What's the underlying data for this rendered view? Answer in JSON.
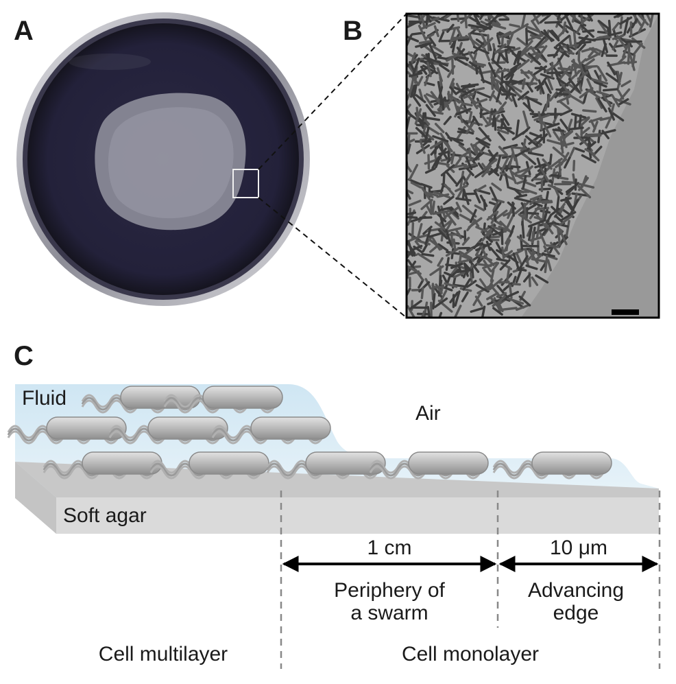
{
  "panels": {
    "a": {
      "label": "A"
    },
    "b": {
      "label": "B"
    },
    "c": {
      "label": "C"
    }
  },
  "diagram": {
    "fluid": "Fluid",
    "air": "Air",
    "soft_agar": "Soft agar",
    "scale_periphery": "1 cm",
    "scale_edge": "10 μm",
    "periphery_line1": "Periphery of",
    "periphery_line2": "a swarm",
    "edge_line1": "Advancing",
    "edge_line2": "edge",
    "multilayer": "Cell multilayer",
    "monolayer": "Cell monolayer"
  },
  "colors": {
    "dish_rim": "#c9c9cf",
    "agar_dark": "#2a2840",
    "swarm": "#8c8c98",
    "fluid": "#d6e9f4",
    "agar_slab": "#d8d8d8",
    "cell": "#b8b8b8"
  }
}
